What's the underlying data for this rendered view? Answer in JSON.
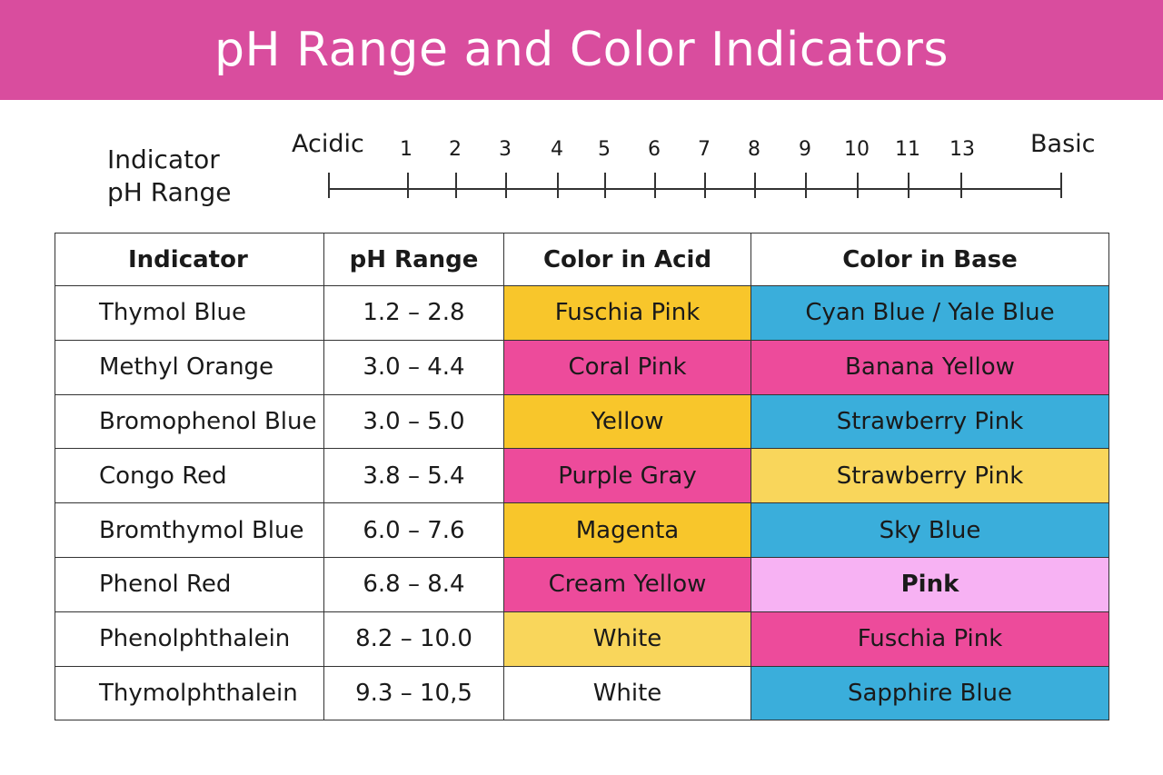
{
  "title": "pH Range and Color Indicators",
  "scale": {
    "caption_line1": "Indicator",
    "caption_line2": "pH Range",
    "left_label": "Acidic",
    "right_label": "Basic",
    "numbers": [
      "1",
      "2",
      "3",
      "4",
      "5",
      "6",
      "7",
      "8",
      "9",
      "10",
      "11",
      "13"
    ]
  },
  "table": {
    "headers": [
      "Indicator",
      "pH Range",
      "Color in Acid",
      "Color in Base"
    ],
    "rows": [
      {
        "indicator": "Thymol Blue",
        "range": "1.2 – 2.8",
        "acid": "Fuschia Pink",
        "acid_color": "yellow",
        "base": "Cyan Blue / Yale Blue",
        "base_color": "blue"
      },
      {
        "indicator": "Methyl Orange",
        "range": "3.0 – 4.4",
        "acid": "Coral Pink",
        "acid_color": "pink",
        "base": "Banana Yellow",
        "base_color": "pink"
      },
      {
        "indicator": "Bromophenol Blue",
        "range": "3.0 – 5.0",
        "acid": "Yellow",
        "acid_color": "yellow",
        "base": "Strawberry Pink",
        "base_color": "blue"
      },
      {
        "indicator": "Congo Red",
        "range": "3.8 – 5.4",
        "acid": "Purple Gray",
        "acid_color": "pink",
        "base": "Strawberry Pink",
        "base_color": "lightyellow"
      },
      {
        "indicator": "Bromthymol Blue",
        "range": "6.0 – 7.6",
        "acid": "Magenta",
        "acid_color": "yellow",
        "base": "Sky Blue",
        "base_color": "blue"
      },
      {
        "indicator": "Phenol Red",
        "range": "6.8 – 8.4",
        "acid": "Cream Yellow",
        "acid_color": "pink",
        "base": "Pink",
        "base_color": "lightpink"
      },
      {
        "indicator": "Phenolphthalein",
        "range": "8.2 – 10.0",
        "acid": "White",
        "acid_color": "lightyellow",
        "base": "Fuschia Pink",
        "base_color": "pink"
      },
      {
        "indicator": "Thymolphthalein",
        "range": "9.3 – 10,5",
        "acid": "White",
        "acid_color": "white",
        "base": "Sapphire Blue",
        "base_color": "blue"
      }
    ]
  },
  "colors": {
    "banner": "#d94d9e",
    "yellow": "#f8c62b",
    "lightyellow": "#f9d65b",
    "pink": "#ed4b9b",
    "blue": "#3aaedb",
    "lightpink": "#f7b2f3",
    "white": "#ffffff"
  }
}
